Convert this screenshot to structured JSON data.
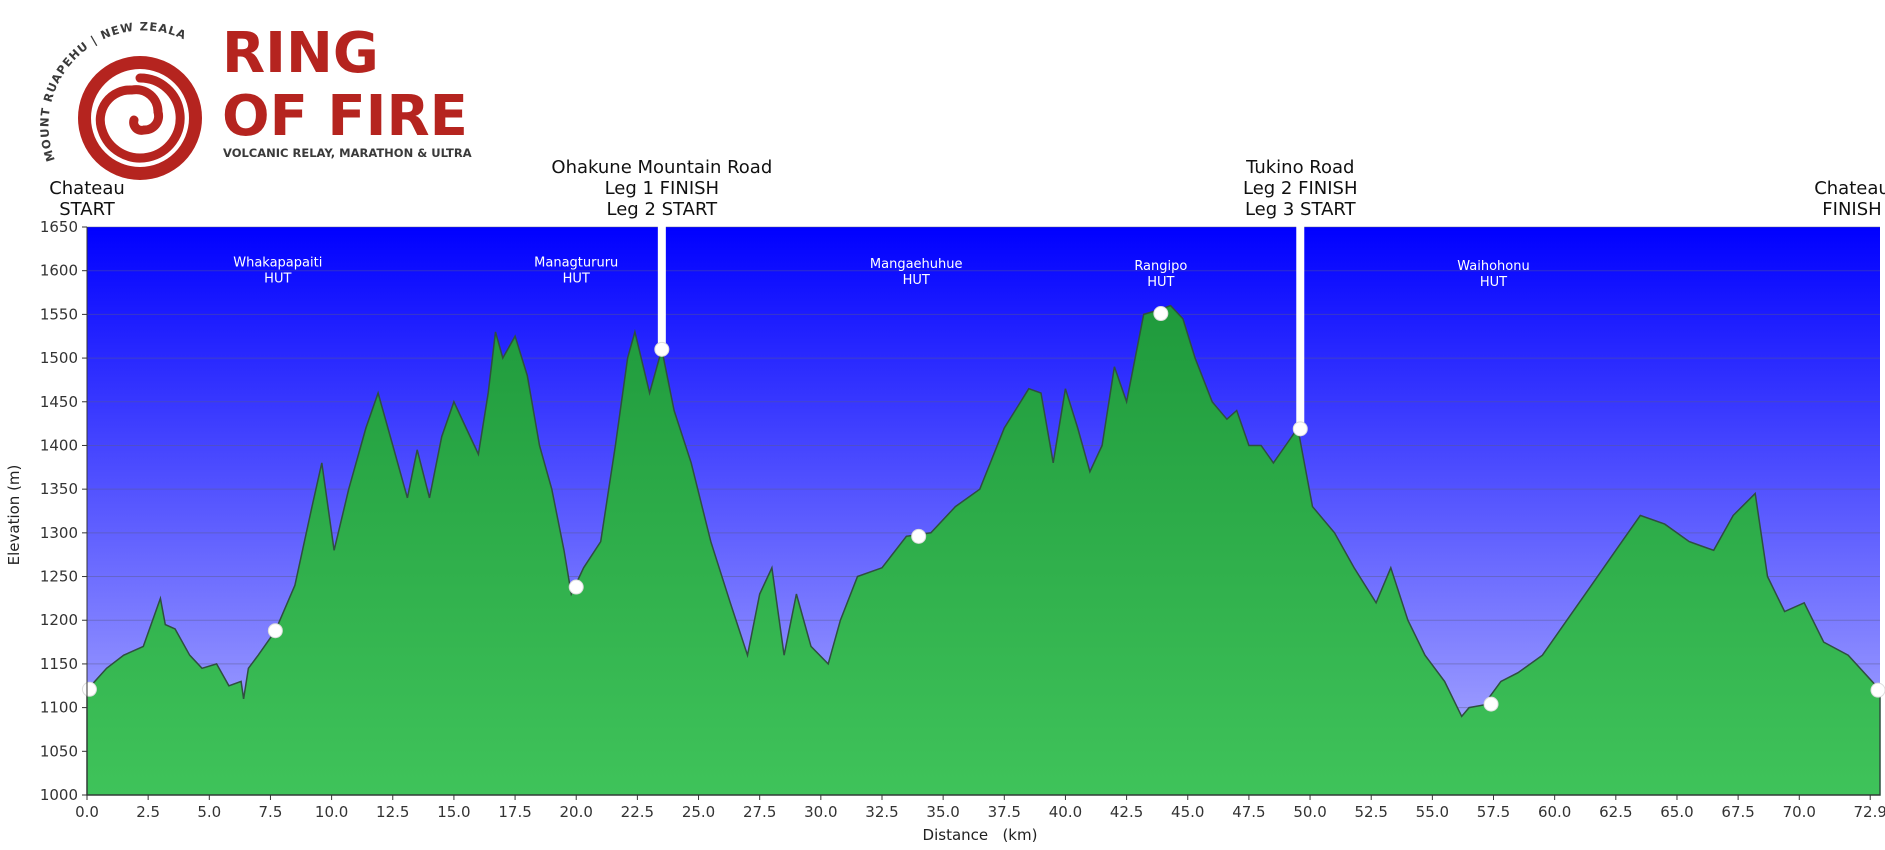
{
  "logo": {
    "title_line1": "RING",
    "title_line2": "OF FIRE",
    "subtitle": "VOLCANIC RELAY, MARATHON & ULTRA",
    "arc_text": "MOUNT RUAPEHU | NEW ZEALAND"
  },
  "colors": {
    "sky_top": "#0000ff",
    "sky_bottom": "#b3b3ff",
    "terrain_top": "#1f9a3c",
    "terrain_bottom": "#3fc35a",
    "outline": "#2f4f3f",
    "logo_red": "#b5241f"
  },
  "chart_data": {
    "type": "area",
    "title": "",
    "xlabel": "Distance   (km)",
    "ylabel": "Elevation (m)",
    "xlim": [
      0,
      73.3
    ],
    "ylim": [
      1000,
      1650
    ],
    "grid": true,
    "x_ticks": [
      "0.0",
      "2.5",
      "5.0",
      "7.5",
      "10.0",
      "12.5",
      "15.0",
      "17.5",
      "20.0",
      "22.5",
      "25.0",
      "27.5",
      "30.0",
      "32.5",
      "35.0",
      "37.5",
      "40.0",
      "42.5",
      "45.0",
      "47.5",
      "50.0",
      "52.5",
      "55.0",
      "57.5",
      "60.0",
      "62.5",
      "65.0",
      "67.5",
      "70.0",
      "72.9"
    ],
    "y_ticks": [
      "1000",
      "1050",
      "1100",
      "1150",
      "1200",
      "1250",
      "1300",
      "1350",
      "1400",
      "1450",
      "1500",
      "1550",
      "1600",
      "1650"
    ],
    "profile": {
      "x": [
        0,
        0.8,
        1.5,
        2.3,
        3.0,
        3.2,
        3.6,
        4.2,
        4.7,
        5.3,
        5.8,
        6.3,
        6.4,
        6.6,
        7.0,
        7.7,
        8.5,
        9.2,
        9.6,
        10.1,
        10.7,
        11.4,
        11.9,
        12.5,
        13.1,
        13.5,
        14.0,
        14.5,
        15.0,
        15.5,
        16.0,
        16.4,
        16.7,
        17.0,
        17.5,
        18.0,
        18.5,
        19.0,
        19.5,
        19.8,
        20.3,
        21.0,
        21.6,
        22.1,
        22.4,
        23.0,
        23.5,
        24.0,
        24.7,
        25.5,
        26.3,
        27.0,
        27.5,
        28.0,
        28.5,
        29.0,
        29.6,
        30.3,
        30.8,
        31.5,
        32.5,
        33.5,
        34.5,
        35.5,
        36.5,
        37.5,
        38.5,
        39.0,
        39.5,
        40.0,
        40.5,
        41.0,
        41.5,
        42.0,
        42.5,
        43.2,
        43.8,
        44.3,
        44.8,
        45.3,
        46.0,
        46.6,
        47.0,
        47.5,
        48.0,
        48.5,
        49.0,
        49.5,
        50.1,
        51.0,
        51.8,
        52.7,
        53.3,
        54.0,
        54.7,
        55.5,
        56.2,
        56.5,
        57.1,
        57.8,
        58.5,
        59.5,
        60.5,
        61.5,
        62.5,
        63.5,
        64.5,
        65.5,
        66.0,
        66.5,
        67.3,
        68.2,
        68.7,
        69.4,
        70.2,
        71.0,
        72.0,
        73.3
      ],
      "y": [
        1120,
        1145,
        1160,
        1170,
        1225,
        1195,
        1190,
        1160,
        1145,
        1150,
        1125,
        1130,
        1110,
        1145,
        1160,
        1188,
        1240,
        1330,
        1380,
        1280,
        1350,
        1420,
        1460,
        1400,
        1340,
        1395,
        1340,
        1410,
        1450,
        1420,
        1390,
        1460,
        1530,
        1500,
        1525,
        1480,
        1400,
        1350,
        1280,
        1230,
        1260,
        1290,
        1400,
        1500,
        1530,
        1460,
        1510,
        1440,
        1380,
        1290,
        1220,
        1160,
        1230,
        1260,
        1160,
        1230,
        1170,
        1150,
        1200,
        1250,
        1260,
        1296,
        1300,
        1330,
        1350,
        1420,
        1465,
        1460,
        1380,
        1465,
        1420,
        1370,
        1400,
        1490,
        1450,
        1550,
        1555,
        1560,
        1545,
        1500,
        1450,
        1430,
        1440,
        1400,
        1400,
        1380,
        1400,
        1420,
        1330,
        1300,
        1260,
        1220,
        1260,
        1200,
        1160,
        1130,
        1090,
        1100,
        1103,
        1130,
        1140,
        1160,
        1200,
        1240,
        1280,
        1320,
        1310,
        1290,
        1285,
        1280,
        1320,
        1345,
        1250,
        1210,
        1220,
        1175,
        1160,
        1120
      ]
    },
    "waypoints": [
      {
        "x": 0.1,
        "y": 1121
      },
      {
        "x": 7.7,
        "y": 1188
      },
      {
        "x": 20.0,
        "y": 1238
      },
      {
        "x": 23.5,
        "y": 1510
      },
      {
        "x": 34.0,
        "y": 1296
      },
      {
        "x": 43.9,
        "y": 1551
      },
      {
        "x": 49.6,
        "y": 1419
      },
      {
        "x": 57.4,
        "y": 1104
      },
      {
        "x": 73.3,
        "y": 1120
      }
    ],
    "huts": [
      {
        "x": 7.8,
        "y": 1605,
        "name": "Whakapapaiti",
        "sub": "HUT"
      },
      {
        "x": 20.0,
        "y": 1605,
        "name": "Managtururu",
        "sub": "HUT"
      },
      {
        "x": 33.9,
        "y": 1603,
        "name": "Mangaehuhue",
        "sub": "HUT"
      },
      {
        "x": 43.9,
        "y": 1601,
        "name": "Rangipo",
        "sub": "HUT"
      },
      {
        "x": 57.5,
        "y": 1601,
        "name": "Waihohonu",
        "sub": "HUT"
      }
    ],
    "markers": [
      {
        "x": 0.0,
        "lines": [
          "Chateau",
          "START"
        ]
      },
      {
        "x": 23.5,
        "lines": [
          "Ohakune Mountain Road",
          "Leg 1 FINISH",
          "Leg 2 START"
        ],
        "pole_to_y": 1510
      },
      {
        "x": 49.6,
        "lines": [
          "Tukino Road",
          "Leg 2 FINISH",
          "Leg 3 START"
        ],
        "pole_to_y": 1419
      },
      {
        "x": 73.3,
        "lines": [
          "Chateau",
          "FINISH"
        ]
      }
    ]
  }
}
